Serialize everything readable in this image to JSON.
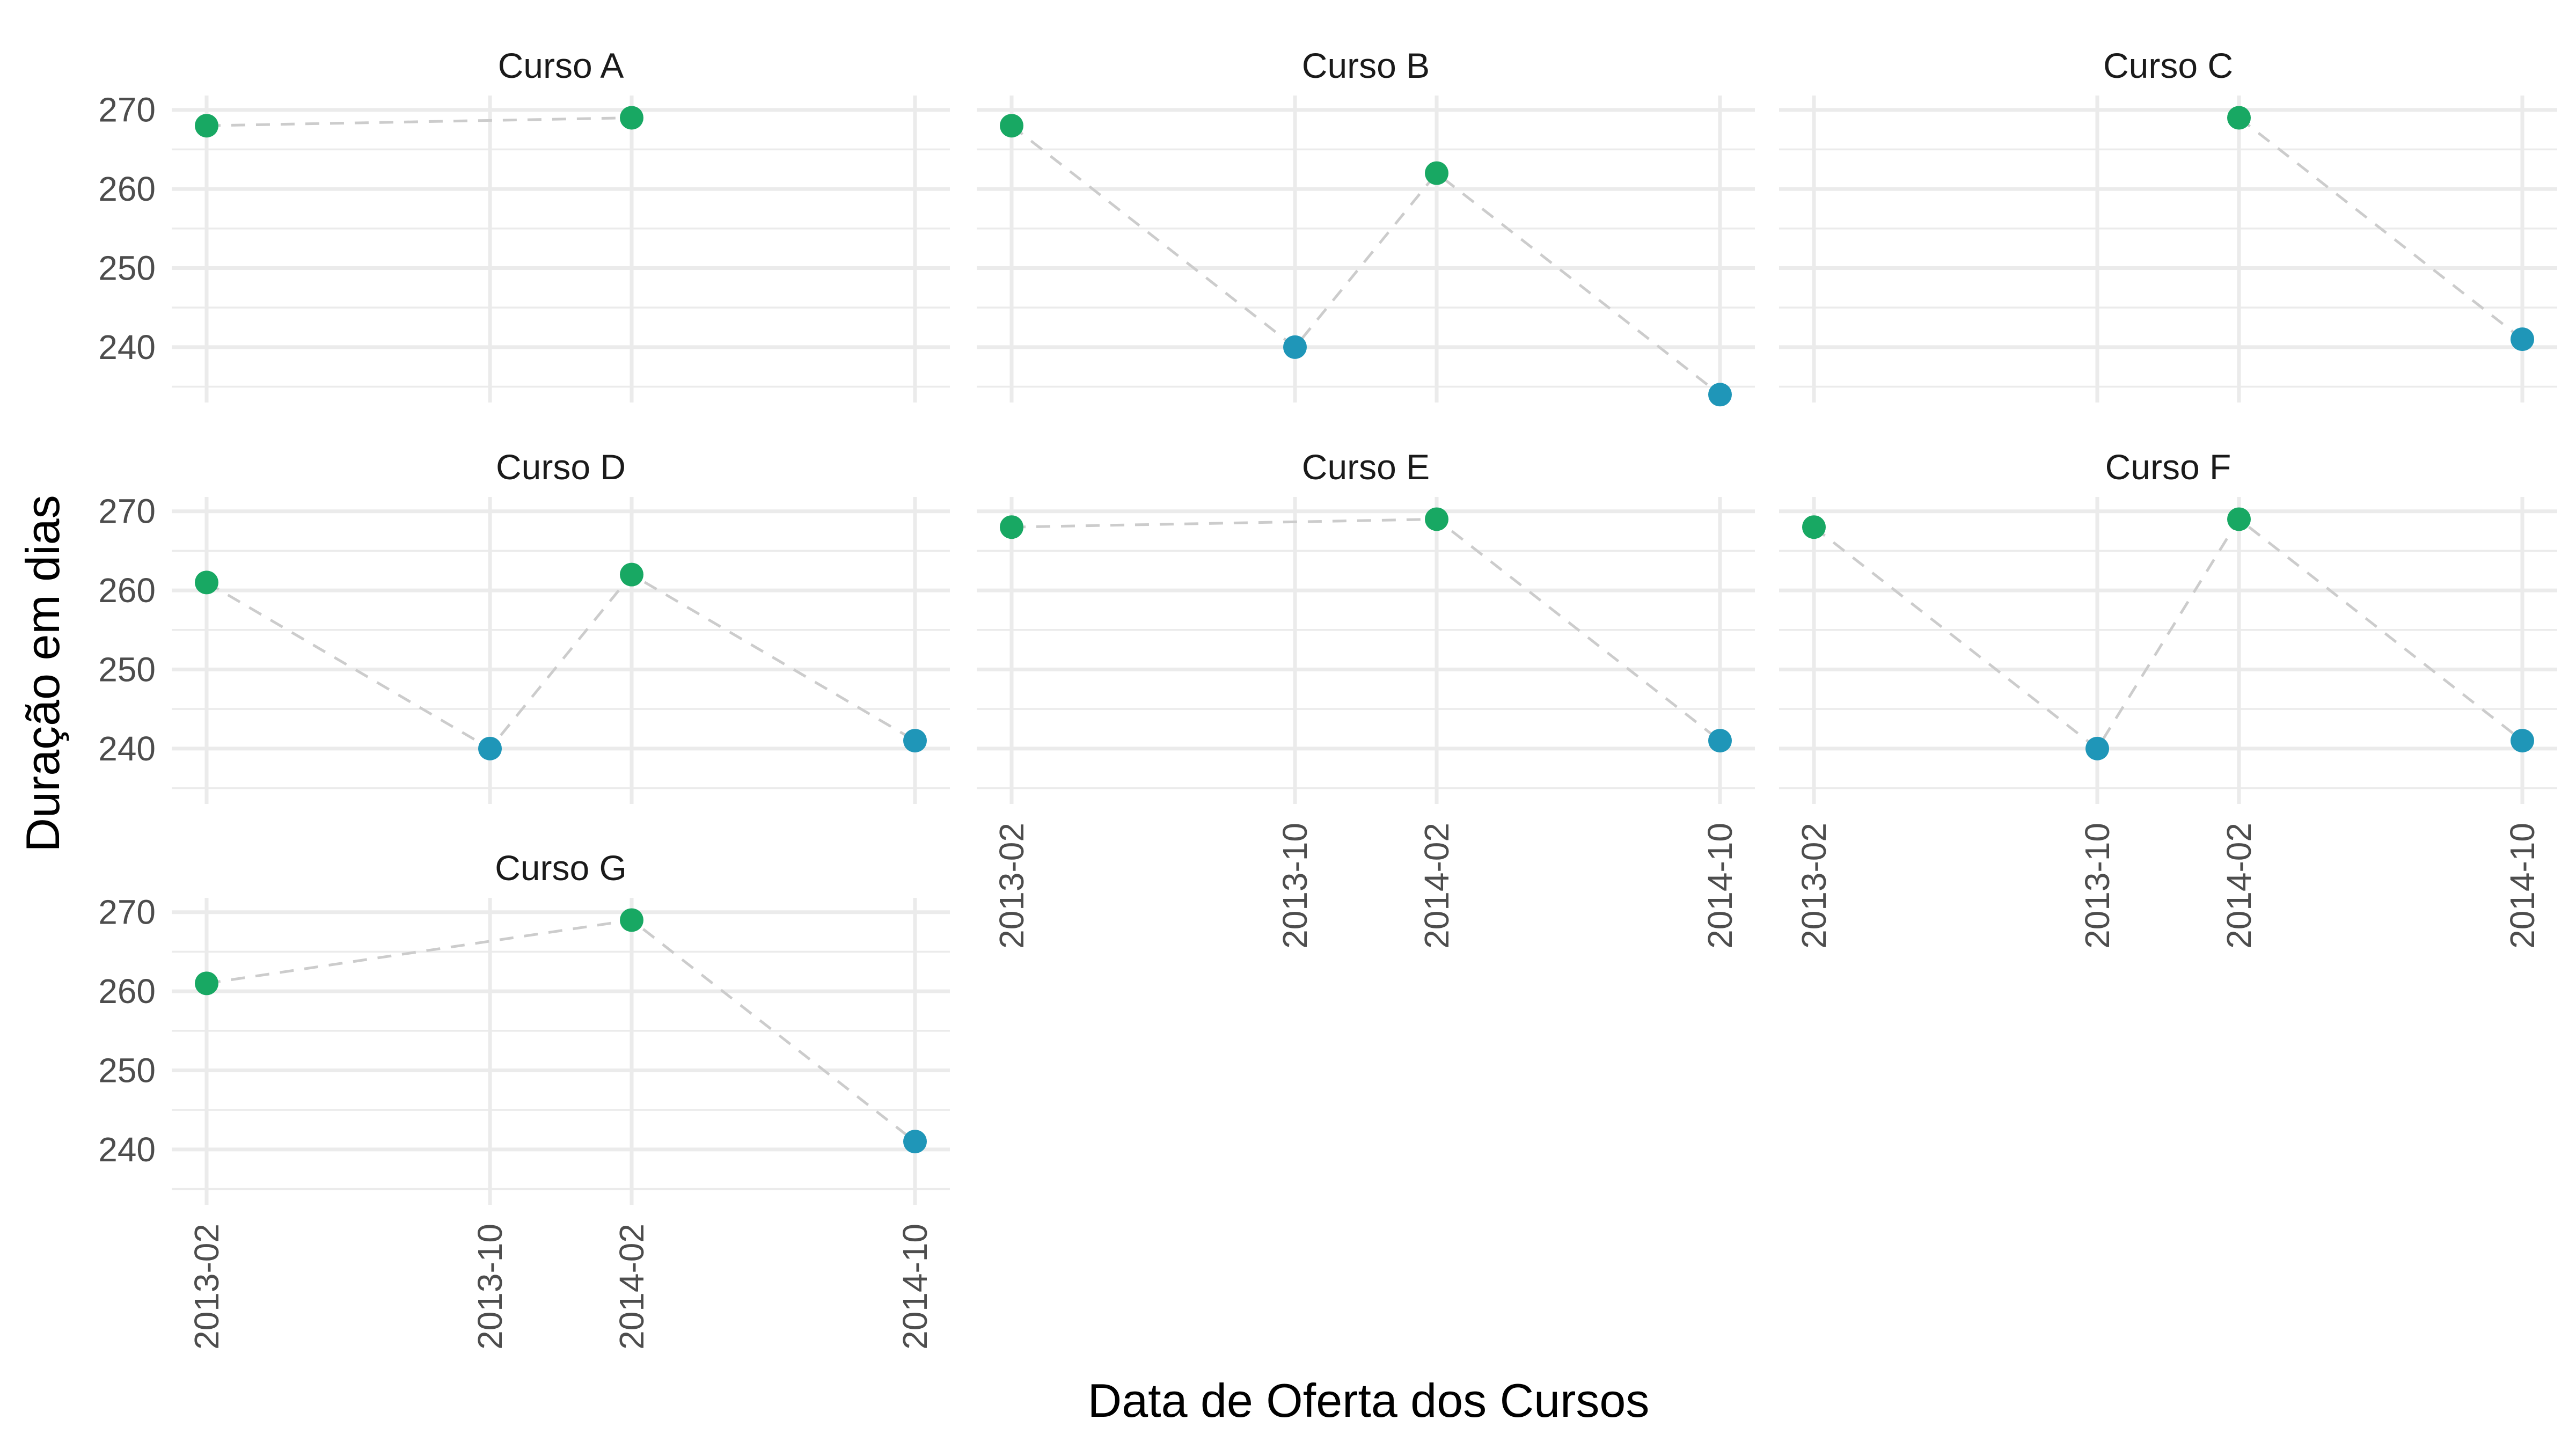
{
  "chart_data": {
    "type": "scatter",
    "facet_wrap": {
      "ncol": 3,
      "nrow": 3
    },
    "xlabel": "Data de Oferta dos Cursos",
    "ylabel": "Duração em dias",
    "x_categories": [
      "2013-02",
      "2013-10",
      "2014-02",
      "2014-10"
    ],
    "x_positions_months": [
      0,
      8,
      12,
      20
    ],
    "yticks": [
      240,
      250,
      260,
      270
    ],
    "ylim": [
      233,
      271
    ],
    "grid": true,
    "legend": "none",
    "point_colors": {
      "long": "#18a863",
      "short": "#1f96b8"
    },
    "connector_color": "#cccccc",
    "facets": [
      {
        "title": "Curso A",
        "points": [
          {
            "x": "2013-02",
            "y": 268
          },
          {
            "x": "2014-02",
            "y": 269
          }
        ]
      },
      {
        "title": "Curso B",
        "points": [
          {
            "x": "2013-02",
            "y": 268
          },
          {
            "x": "2013-10",
            "y": 240
          },
          {
            "x": "2014-02",
            "y": 262
          },
          {
            "x": "2014-10",
            "y": 234
          }
        ]
      },
      {
        "title": "Curso C",
        "points": [
          {
            "x": "2014-02",
            "y": 269
          },
          {
            "x": "2014-10",
            "y": 241
          }
        ]
      },
      {
        "title": "Curso D",
        "points": [
          {
            "x": "2013-02",
            "y": 261
          },
          {
            "x": "2013-10",
            "y": 240
          },
          {
            "x": "2014-02",
            "y": 262
          },
          {
            "x": "2014-10",
            "y": 241
          }
        ]
      },
      {
        "title": "Curso E",
        "points": [
          {
            "x": "2013-02",
            "y": 268
          },
          {
            "x": "2014-02",
            "y": 269
          },
          {
            "x": "2014-10",
            "y": 241
          }
        ]
      },
      {
        "title": "Curso F",
        "points": [
          {
            "x": "2013-02",
            "y": 268
          },
          {
            "x": "2013-10",
            "y": 240
          },
          {
            "x": "2014-02",
            "y": 269
          },
          {
            "x": "2014-10",
            "y": 241
          }
        ]
      },
      {
        "title": "Curso G",
        "points": [
          {
            "x": "2013-02",
            "y": 261
          },
          {
            "x": "2014-02",
            "y": 269
          },
          {
            "x": "2014-10",
            "y": 241
          }
        ]
      }
    ]
  }
}
